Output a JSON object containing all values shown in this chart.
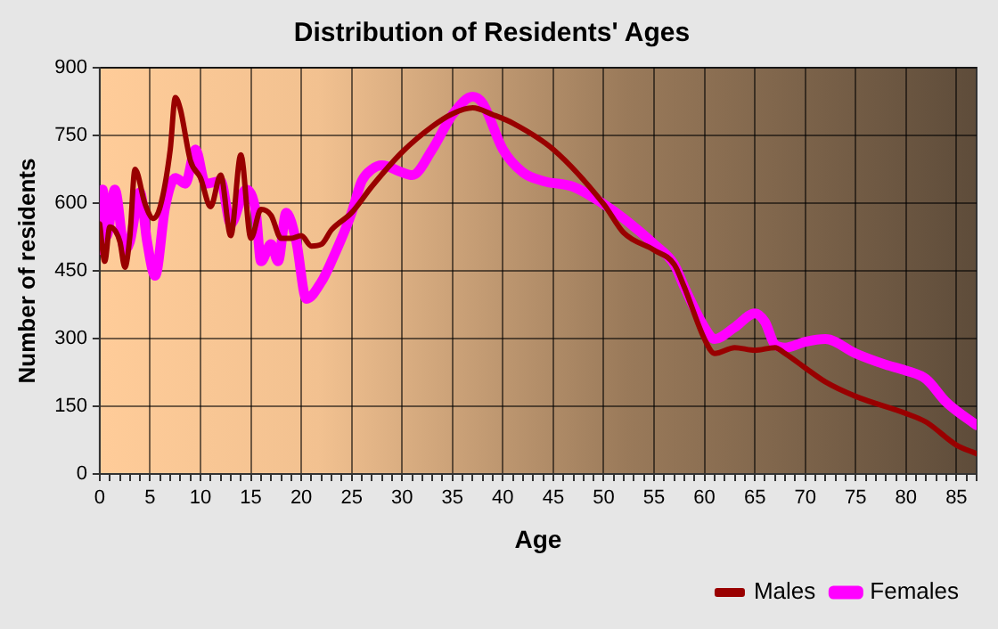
{
  "chart_data": {
    "type": "line",
    "title": "Distribution of Residents' Ages",
    "xlabel": "Age",
    "ylabel": "Number of residents",
    "xlim": [
      0,
      87
    ],
    "xticks": [
      0,
      5,
      10,
      15,
      20,
      25,
      30,
      35,
      40,
      45,
      50,
      55,
      60,
      65,
      70,
      75,
      80,
      85
    ],
    "ylim": [
      0,
      900
    ],
    "yticks": [
      0,
      150,
      300,
      450,
      600,
      750,
      900
    ],
    "grid": true,
    "legend": "bottom right",
    "marker": "none",
    "line_style": "solid",
    "series": [
      {
        "name": "Males",
        "color": "#990000",
        "x": [
          0,
          0.5,
          1,
          2,
          2.5,
          3,
          3.5,
          4.5,
          5.3,
          6,
          7,
          7.5,
          8,
          9,
          10,
          11,
          12,
          13,
          14,
          15,
          16,
          17,
          18,
          19,
          20,
          21,
          22,
          23,
          25,
          27,
          30,
          33,
          35,
          37,
          39,
          41,
          45,
          50,
          52,
          55,
          57,
          58,
          60,
          61,
          63,
          65,
          67,
          68,
          70,
          72,
          75,
          80,
          82,
          85,
          87
        ],
        "values": [
          554,
          471,
          547,
          515,
          458,
          528,
          675,
          598,
          566,
          592,
          719,
          834,
          808,
          694,
          656,
          592,
          662,
          528,
          707,
          522,
          586,
          573,
          522,
          522,
          528,
          505,
          509,
          541,
          579,
          637,
          713,
          770,
          798,
          811,
          796,
          777,
          719,
          598,
          534,
          496,
          464,
          414,
          299,
          267,
          280,
          274,
          280,
          267,
          235,
          204,
          172,
          134,
          115,
          64,
          45
        ]
      },
      {
        "name": "Females",
        "color": "#ff00ff",
        "x": [
          0,
          0.3,
          0.7,
          1.5,
          2.5,
          3,
          4,
          4.7,
          5.5,
          6.5,
          7.5,
          8.5,
          9.5,
          10.5,
          12,
          13,
          14.5,
          15.5,
          16,
          17,
          17.7,
          18.5,
          19.5,
          20.5,
          22,
          23,
          25,
          26,
          27,
          28,
          30,
          31,
          33,
          35,
          37,
          38,
          40,
          42,
          44,
          47,
          50,
          52,
          55,
          57,
          58,
          60,
          61,
          63,
          65,
          66,
          67,
          68,
          70,
          72,
          75,
          78,
          80,
          82,
          84,
          87
        ],
        "values": [
          496,
          630,
          528,
          630,
          496,
          515,
          624,
          515,
          439,
          592,
          656,
          643,
          719,
          643,
          649,
          554,
          630,
          579,
          471,
          509,
          471,
          579,
          515,
          388,
          426,
          471,
          579,
          649,
          675,
          684,
          668,
          662,
          719,
          796,
          836,
          821,
          719,
          668,
          649,
          636,
          598,
          566,
          509,
          464,
          414,
          325,
          299,
          325,
          356,
          337,
          286,
          280,
          293,
          299,
          267,
          242,
          229,
          210,
          159,
          108
        ]
      }
    ]
  }
}
